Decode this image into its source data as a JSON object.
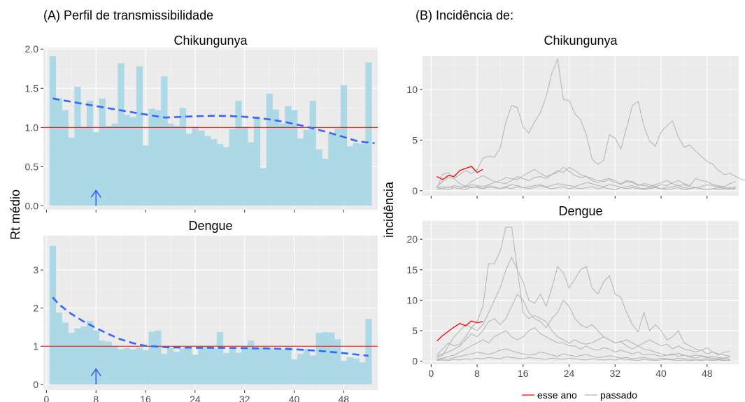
{
  "chart_data": [
    {
      "type": "bar",
      "panel_label": "(A) Perfil de transmissibilidade",
      "title": "Chikungunya",
      "ylabel": "Rt médio",
      "xlabel": "",
      "xlim": [
        -0.5,
        53.5
      ],
      "ylim": [
        -0.05,
        2.02
      ],
      "x_ticks": [
        0,
        8,
        16,
        24,
        32,
        40,
        48
      ],
      "y_ticks": [
        "0.0",
        "0.5",
        "1.0",
        "1.5",
        "2.0"
      ],
      "y_tick_values": [
        0,
        0.5,
        1.0,
        1.5,
        2.0
      ],
      "bar_color": "#add8e6",
      "reference_line": {
        "y": 1.0,
        "color": "#ff0000"
      },
      "trend_color": "#3366ff",
      "arrow": {
        "x": 8,
        "color": "#3366ff"
      },
      "x": [
        1,
        2,
        3,
        4,
        5,
        6,
        7,
        8,
        9,
        10,
        11,
        12,
        13,
        14,
        15,
        16,
        17,
        18,
        19,
        20,
        21,
        22,
        23,
        24,
        25,
        26,
        27,
        28,
        29,
        30,
        31,
        32,
        33,
        34,
        35,
        36,
        37,
        38,
        39,
        40,
        41,
        42,
        43,
        44,
        45,
        46,
        47,
        48,
        49,
        50,
        51,
        52,
        53
      ],
      "values": [
        1.91,
        1.37,
        1.22,
        0.87,
        1.52,
        1.01,
        1.34,
        0.94,
        1.37,
        1.02,
        1.05,
        1.82,
        1.16,
        1.13,
        1.78,
        0.77,
        1.24,
        1.22,
        1.65,
        1.05,
        1.02,
        1.25,
        0.92,
        1.01,
        0.96,
        0.89,
        0.85,
        0.79,
        0.75,
        0.98,
        1.34,
        1.01,
        0.81,
        1.14,
        0.48,
        1.43,
        1.23,
        1.05,
        1.27,
        1.22,
        0.86,
        0.97,
        1.34,
        0.72,
        0.6,
        0.92,
        0.99,
        1.54,
        0.76,
        0.8,
        0.79,
        1.83,
        0.0
      ],
      "trend": {
        "x": [
          1,
          53
        ],
        "y_start": 1.37,
        "y_end": 0.8
      }
    },
    {
      "type": "bar",
      "title": "Dengue",
      "ylabel": "Rt médio",
      "xlabel": "",
      "xlim": [
        -0.5,
        53.5
      ],
      "ylim": [
        -0.15,
        3.9
      ],
      "x_ticks": [
        0,
        8,
        16,
        24,
        32,
        40,
        48
      ],
      "y_ticks": [
        "0",
        "1",
        "2",
        "3"
      ],
      "y_tick_values": [
        0,
        1,
        2,
        3
      ],
      "bar_color": "#add8e6",
      "reference_line": {
        "y": 1.0,
        "color": "#ff0000"
      },
      "trend_color": "#3366ff",
      "arrow": {
        "x": 8,
        "color": "#3366ff"
      },
      "x": [
        1,
        2,
        3,
        4,
        5,
        6,
        7,
        8,
        9,
        10,
        11,
        12,
        13,
        14,
        15,
        16,
        17,
        18,
        19,
        20,
        21,
        22,
        23,
        24,
        25,
        26,
        27,
        28,
        29,
        30,
        31,
        32,
        33,
        34,
        35,
        36,
        37,
        38,
        39,
        40,
        41,
        42,
        43,
        44,
        45,
        46,
        47,
        48,
        49,
        50,
        51,
        52,
        53
      ],
      "values": [
        3.63,
        1.88,
        1.62,
        1.35,
        1.47,
        1.52,
        1.66,
        1.41,
        1.15,
        1.12,
        1.0,
        0.92,
        0.95,
        0.92,
        0.96,
        0.9,
        1.38,
        1.41,
        0.8,
        0.96,
        0.85,
        0.94,
        0.93,
        0.78,
        1.0,
        1.0,
        0.95,
        1.37,
        0.82,
        0.92,
        0.83,
        1.0,
        1.15,
        0.95,
        0.98,
        0.95,
        0.9,
        0.92,
        0.99,
        0.66,
        0.8,
        0.92,
        0.76,
        1.35,
        1.37,
        1.36,
        1.18,
        0.62,
        0.71,
        0.68,
        0.58,
        1.72,
        0.0
      ],
      "trend": {
        "x": [
          1,
          2,
          4,
          6,
          8,
          10,
          12,
          14,
          16,
          20,
          24,
          28,
          32,
          36,
          40,
          44,
          48,
          52
        ],
        "y": [
          2.28,
          2.1,
          1.85,
          1.65,
          1.48,
          1.32,
          1.18,
          1.08,
          1.01,
          0.97,
          0.96,
          0.96,
          0.95,
          0.94,
          0.92,
          0.88,
          0.82,
          0.75
        ]
      }
    },
    {
      "type": "line",
      "panel_label": "(B) Incidência de:",
      "title": "Chikungunya",
      "ylabel": "incidência",
      "xlabel": "",
      "xlim": [
        -1.5,
        53.5
      ],
      "ylim": [
        -0.5,
        13.3
      ],
      "x_ticks": [
        0,
        8,
        16,
        24,
        32,
        40,
        48
      ],
      "y_ticks": [
        "0",
        "5",
        "10"
      ],
      "y_tick_values": [
        0,
        5,
        10
      ],
      "series": [
        {
          "name": "passado",
          "color": "#b3b3b3",
          "y": [
            0.4,
            0.9,
            1.3,
            1.2,
            1.6,
            2.0,
            1.7,
            2.1,
            3.2,
            3.4,
            3.3,
            4.2,
            6.8,
            8.4,
            8.2,
            6.3,
            5.7,
            6.8,
            7.7,
            9.3,
            11.6,
            13.0,
            9.0,
            8.9,
            7.6,
            7.0,
            5.5,
            3.1,
            2.6,
            3.0,
            5.5,
            5.2,
            4.1,
            6.2,
            8.4,
            8.8,
            6.4,
            4.9,
            4.4,
            5.8,
            6.4,
            6.9,
            5.3,
            4.3,
            4.5,
            3.9,
            3.4,
            2.9,
            2.6,
            2.0,
            1.6,
            1.7,
            1.4,
            1.1,
            1.0,
            1.2,
            1.4
          ]
        },
        {
          "name": "passado",
          "color": "#b3b3b3",
          "y": [
            0.2,
            1.6,
            1.8,
            1.2,
            0.7,
            0.4,
            0.9,
            1.2,
            1.5,
            1.2,
            0.9,
            0.8,
            0.7,
            1.0,
            1.4,
            1.2,
            1.0,
            1.3,
            1.4,
            1.2,
            1.6,
            1.8,
            2.3,
            1.9,
            1.5,
            1.3,
            1.4,
            1.0,
            0.8,
            1.1,
            1.2,
            1.0,
            0.6,
            0.9,
            0.8,
            0.5,
            0.7,
            0.6,
            0.4,
            0.6,
            0.5,
            0.8,
            1.0,
            0.7,
            0.5,
            1.2,
            1.0,
            0.9,
            0.6,
            0.5,
            0.4,
            0.7,
            0.9
          ]
        },
        {
          "name": "passado",
          "color": "#b3b3b3",
          "y": [
            0.3,
            0.4,
            0.3,
            0.5,
            0.4,
            0.3,
            0.6,
            0.5,
            0.4,
            0.6,
            0.8,
            1.0,
            1.3,
            1.2,
            1.1,
            1.5,
            1.8,
            2.1,
            1.7,
            1.4,
            1.6,
            2.0,
            1.8,
            2.3,
            2.0,
            1.6,
            1.4,
            1.2,
            1.0,
            0.9,
            1.1,
            0.8,
            0.7,
            1.0,
            0.9,
            0.6,
            0.5,
            0.4,
            0.6,
            0.8,
            1.0,
            0.7,
            0.5,
            0.6,
            0.4,
            0.3,
            0.4,
            0.6,
            0.5,
            0.4,
            0.3,
            0.2,
            0.4
          ]
        },
        {
          "name": "passado",
          "color": "#b3b3b3",
          "y": [
            0.1,
            0.2,
            0.1,
            0.3,
            0.2,
            0.1,
            0.4,
            0.3,
            0.2,
            0.5,
            0.3,
            0.2,
            0.4,
            0.6,
            0.5,
            0.3,
            0.4,
            0.5,
            0.6,
            0.4,
            0.5,
            0.7,
            0.6,
            0.5,
            0.4,
            0.6,
            0.8,
            0.7,
            0.5,
            0.4,
            0.6,
            0.5,
            0.3,
            0.4,
            0.5,
            0.3,
            0.2,
            0.3,
            0.4,
            0.2,
            0.3,
            0.4,
            0.5,
            0.3,
            0.2,
            0.3,
            0.2,
            0.1,
            0.2,
            0.3,
            0.2,
            0.1,
            0.2
          ]
        },
        {
          "name": "passado",
          "color": "#b3b3b3",
          "y": [
            0.3,
            0.2,
            0.4,
            0.3,
            0.2,
            0.5,
            0.3,
            0.4,
            0.2,
            0.3,
            0.4,
            0.2,
            0.3,
            0.2,
            0.4,
            0.3,
            0.2,
            0.3,
            0.5,
            0.3,
            0.2,
            0.3,
            0.4,
            0.2,
            0.3,
            0.2,
            0.3,
            0.4,
            0.2,
            0.3,
            0.2,
            0.1,
            0.3,
            0.2,
            0.3,
            0.2,
            0.1,
            0.2,
            0.3,
            0.2,
            0.1,
            0.2,
            0.3,
            0.1,
            0.2,
            0.3,
            0.2,
            0.1,
            0.2,
            0.1,
            0.2,
            0.3,
            0.2
          ]
        },
        {
          "name": "esse ano",
          "color": "#ff0000",
          "y": [
            1.4,
            1.1,
            1.5,
            1.4,
            2.0,
            2.2,
            2.4,
            1.8,
            2.1
          ]
        }
      ]
    },
    {
      "type": "line",
      "title": "Dengue",
      "ylabel": "incidência",
      "xlabel": "",
      "xlim": [
        -1.5,
        53.5
      ],
      "ylim": [
        -0.5,
        23.0
      ],
      "x_ticks": [
        0,
        8,
        16,
        24,
        32,
        40,
        48
      ],
      "y_ticks": [
        "0",
        "5",
        "10",
        "15",
        "20"
      ],
      "y_tick_values": [
        0,
        5,
        10,
        15,
        20
      ],
      "series": [
        {
          "name": "passado",
          "color": "#b3b3b3",
          "y": [
            1.0,
            2.0,
            3.0,
            2.5,
            2.8,
            4.0,
            5.5,
            6.5,
            9.0,
            16.0,
            16.0,
            18.0,
            22.0,
            22.0,
            15.0,
            8.0,
            7.0,
            7.5,
            7.0,
            6.5,
            5.0,
            4.0,
            3.5,
            3.0,
            3.5,
            3.0,
            2.8,
            3.0,
            3.5,
            4.0,
            3.5,
            3.0,
            3.2,
            2.5,
            2.0,
            2.5,
            2.0,
            1.8,
            1.5,
            1.2,
            1.0,
            1.0,
            1.3,
            1.0,
            0.8,
            1.0,
            0.9,
            0.7,
            0.8,
            0.6,
            0.5,
            0.7
          ]
        },
        {
          "name": "passado",
          "color": "#b3b3b3",
          "y": [
            0.5,
            1.0,
            2.5,
            4.0,
            5.0,
            6.0,
            5.5,
            5.0,
            6.0,
            8.0,
            10.0,
            12.0,
            15.0,
            17.0,
            15.0,
            13.0,
            10.0,
            9.5,
            11.0,
            9.0,
            12.0,
            15.5,
            14.5,
            12.0,
            13.5,
            15.0,
            15.5,
            12.0,
            11.0,
            13.0,
            14.0,
            11.0,
            10.5,
            8.0,
            6.0,
            4.8,
            8.0,
            5.0,
            6.0,
            5.0,
            3.5,
            4.0,
            5.0,
            3.0,
            2.5,
            2.0,
            1.8,
            2.2,
            1.5,
            1.2,
            1.0,
            0.8
          ]
        },
        {
          "name": "passado",
          "color": "#b3b3b3",
          "y": [
            0.8,
            1.2,
            1.5,
            2.0,
            2.5,
            3.5,
            4.5,
            4.0,
            5.0,
            6.5,
            7.0,
            6.0,
            7.0,
            9.0,
            11.0,
            10.0,
            8.0,
            7.0,
            6.5,
            5.5,
            7.0,
            8.0,
            10.0,
            9.0,
            7.0,
            6.0,
            5.5,
            6.0,
            5.0,
            4.0,
            3.5,
            3.0,
            3.2,
            3.5,
            3.0,
            2.5,
            3.0,
            3.5,
            3.0,
            2.5,
            2.8,
            2.0,
            2.5,
            2.0,
            1.8,
            1.5,
            1.8,
            1.2,
            1.5,
            1.0,
            1.5,
            1.6
          ]
        },
        {
          "name": "passado",
          "color": "#b3b3b3",
          "y": [
            0.3,
            0.5,
            0.8,
            1.0,
            1.5,
            2.0,
            2.5,
            3.0,
            3.5,
            3.0,
            4.0,
            4.5,
            5.0,
            4.0,
            3.5,
            4.0,
            5.0,
            5.5,
            4.5,
            4.0,
            3.5,
            3.0,
            3.0,
            2.5,
            2.5,
            2.0,
            2.5,
            2.0,
            1.8,
            2.2,
            2.0,
            1.5,
            1.8,
            1.5,
            1.2,
            1.5,
            1.0,
            1.2,
            1.0,
            0.8,
            1.0,
            1.2,
            0.8,
            1.0,
            0.7,
            0.5,
            0.8,
            0.6,
            0.5,
            0.4,
            0.5,
            0.3
          ]
        },
        {
          "name": "passado",
          "color": "#b3b3b3",
          "y": [
            0.2,
            0.4,
            0.3,
            0.6,
            0.8,
            1.0,
            1.2,
            1.5,
            1.3,
            1.1,
            1.4,
            1.8,
            2.0,
            1.7,
            1.4,
            1.2,
            1.0,
            1.1,
            1.5,
            1.3,
            1.0,
            0.8,
            1.2,
            1.0,
            0.8,
            0.9,
            1.1,
            0.8,
            0.6,
            0.7,
            0.9,
            0.7,
            0.5,
            0.6,
            0.4,
            0.5,
            0.6,
            0.4,
            0.3,
            0.5,
            0.4,
            0.3,
            0.5,
            0.4,
            0.3,
            0.2,
            0.3,
            0.4,
            0.2,
            0.3,
            0.2,
            0.1
          ]
        },
        {
          "name": "passado",
          "color": "#b3b3b3",
          "y": [
            0.1,
            0.2,
            0.1,
            0.3,
            0.2,
            0.4,
            0.3,
            0.5,
            0.4,
            0.6,
            0.5,
            0.4,
            0.7,
            0.6,
            0.5,
            0.4,
            0.6,
            0.5,
            0.4,
            0.3,
            0.5,
            0.4,
            0.3,
            0.5,
            0.4,
            0.3,
            0.2,
            0.4,
            0.3,
            0.2,
            0.3,
            0.2,
            0.4,
            0.3,
            0.2,
            0.1,
            0.3,
            0.2,
            0.1,
            0.2,
            0.3,
            0.2,
            0.1,
            0.2,
            0.1,
            0.2,
            0.1,
            0.2,
            0.1,
            0.2,
            0.1,
            0.2
          ]
        },
        {
          "name": "esse ano",
          "color": "#ff0000",
          "y": [
            3.3,
            4.2,
            4.9,
            5.6,
            6.2,
            5.8,
            6.6,
            6.3,
            6.5
          ]
        }
      ]
    }
  ],
  "legend": {
    "items": [
      {
        "label": "esse ano",
        "color": "#ff0000"
      },
      {
        "label": "passado",
        "color": "#b3b3b3"
      }
    ],
    "position": "bottom"
  },
  "colors": {
    "panel_background": "#ebebeb",
    "grid_major": "#ffffff",
    "grid_minor": "#f5f5f5",
    "axis_text": "#4d4d4d"
  }
}
